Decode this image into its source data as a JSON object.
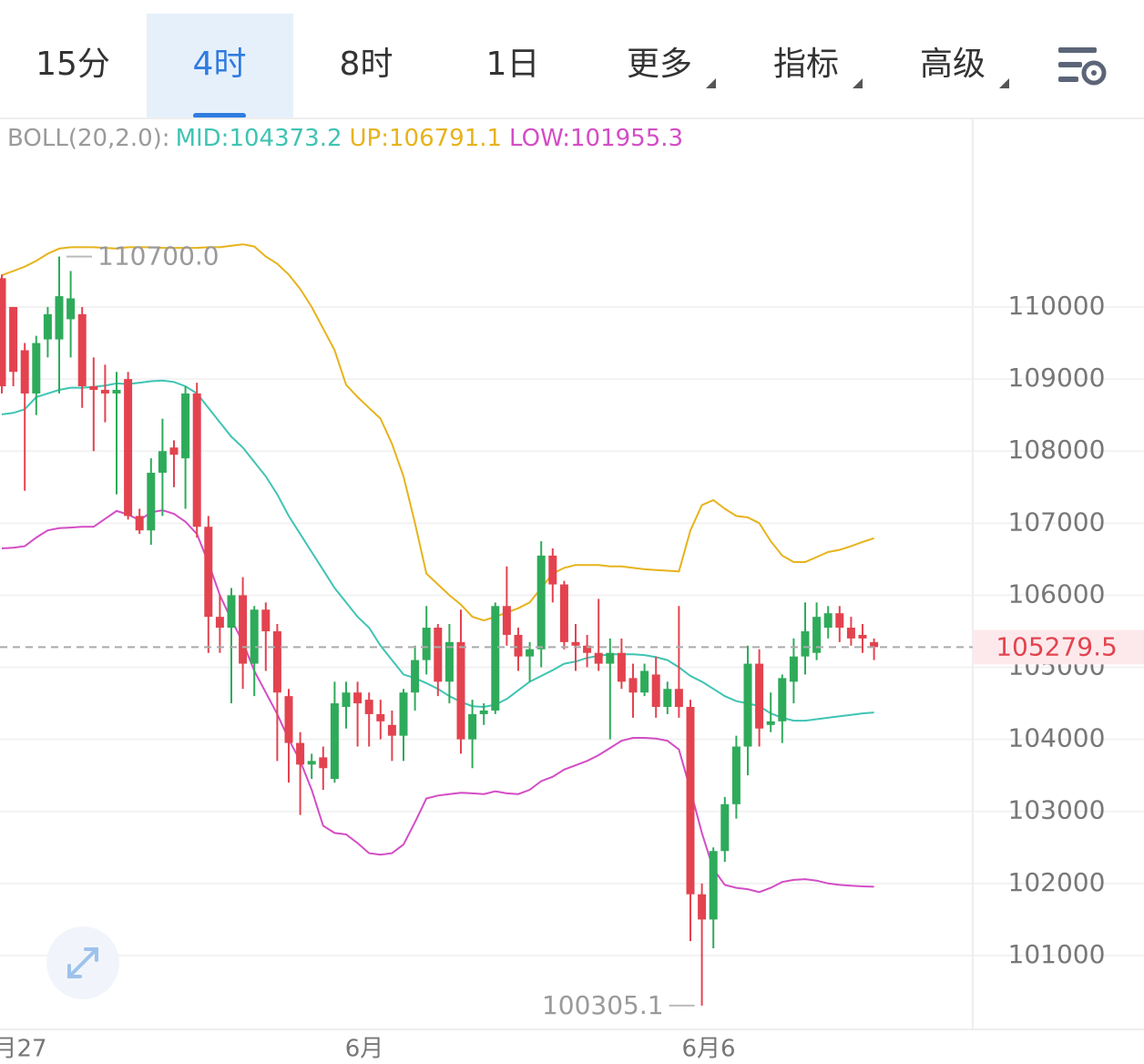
{
  "tabs": [
    {
      "label": "15分"
    },
    {
      "label": "4时"
    },
    {
      "label": "8时"
    },
    {
      "label": "1日"
    },
    {
      "label": "更多",
      "dropdown": true
    },
    {
      "label": "指标",
      "dropdown": true
    },
    {
      "label": "高级",
      "dropdown": true
    }
  ],
  "selected_tab": 1,
  "chart_data": {
    "type": "candlestick",
    "indicator": "BOLL(20,2.0):",
    "categories": [
      "月27",
      null,
      null,
      null,
      null,
      null,
      null,
      null,
      null,
      null,
      null,
      null,
      null,
      null,
      null,
      null,
      null,
      null,
      null,
      null,
      null,
      null,
      null,
      null,
      null,
      null,
      null,
      null,
      null,
      null,
      "6月",
      null,
      null,
      null,
      null,
      null,
      null,
      null,
      null,
      null,
      null,
      null,
      null,
      null,
      null,
      null,
      null,
      null,
      null,
      null,
      null,
      null,
      null,
      null,
      null,
      null,
      null,
      null,
      null,
      null,
      "6月6",
      null,
      null,
      null,
      null,
      null,
      null,
      null,
      null,
      null,
      null,
      null,
      null,
      null,
      null,
      null,
      null
    ],
    "open": [
      110400,
      110000,
      109400,
      108800,
      109550,
      109550,
      109830,
      109900,
      108900,
      108850,
      108800,
      109000,
      107100,
      106900,
      107700,
      108050,
      107900,
      108800,
      106950,
      105700,
      105550,
      106000,
      105050,
      105800,
      105500,
      104600,
      103950,
      103650,
      103750,
      103450,
      104450,
      104650,
      104550,
      104350,
      104200,
      104050,
      104650,
      105100,
      105550,
      104800,
      105350,
      104000,
      104350,
      104400,
      105850,
      105450,
      105150,
      105250,
      106550,
      106150,
      105350,
      105300,
      105200,
      105050,
      105200,
      104850,
      104650,
      104900,
      104450,
      104700,
      104450,
      101850,
      101500,
      102450,
      103100,
      103900,
      105050,
      104200,
      104250,
      104800,
      105150,
      105200,
      105550,
      105750,
      105550,
      105450,
      105350
    ],
    "high": [
      110450,
      110000,
      109500,
      109600,
      110000,
      110700,
      110500,
      110000,
      109300,
      109200,
      109100,
      109100,
      107200,
      107900,
      108450,
      108150,
      108900,
      108950,
      107100,
      106000,
      106100,
      106250,
      105850,
      105900,
      105600,
      104700,
      104100,
      103800,
      103900,
      104800,
      104800,
      104800,
      104650,
      104550,
      104400,
      104700,
      105300,
      105850,
      105600,
      105600,
      105800,
      104550,
      104500,
      105900,
      106400,
      105550,
      105350,
      106750,
      106650,
      106200,
      105600,
      105450,
      105950,
      105400,
      105400,
      105050,
      105050,
      105150,
      104800,
      105850,
      104550,
      102000,
      102500,
      103200,
      104050,
      105300,
      105250,
      104650,
      104900,
      105400,
      105900,
      105900,
      105850,
      105850,
      105700,
      105600,
      105400
    ],
    "low": [
      108800,
      108900,
      107450,
      108500,
      109300,
      108800,
      109300,
      108600,
      108000,
      108400,
      107400,
      107050,
      106850,
      106700,
      107100,
      107500,
      107200,
      106800,
      105200,
      105200,
      104500,
      104700,
      104600,
      104950,
      103700,
      103400,
      102950,
      103450,
      103300,
      103400,
      104150,
      103900,
      103900,
      104000,
      103700,
      103700,
      104400,
      104900,
      104600,
      104500,
      103800,
      103600,
      104200,
      104350,
      105300,
      104950,
      104800,
      105000,
      105900,
      105250,
      104950,
      105000,
      104950,
      104000,
      104700,
      104300,
      104600,
      104300,
      104350,
      104300,
      101200,
      100305.1,
      101100,
      102300,
      102900,
      103500,
      103900,
      104100,
      103950,
      104500,
      104900,
      105100,
      105400,
      105350,
      105300,
      105200,
      105100
    ],
    "close": [
      108900,
      109100,
      108800,
      109500,
      109900,
      110150,
      110120,
      108900,
      108850,
      108800,
      108850,
      107100,
      106900,
      107700,
      108000,
      107950,
      108800,
      106950,
      105700,
      105550,
      106000,
      105050,
      105800,
      105500,
      104650,
      103950,
      103650,
      103700,
      103600,
      104500,
      104650,
      104500,
      104350,
      104250,
      104050,
      104650,
      105100,
      105550,
      104800,
      105350,
      104000,
      104350,
      104400,
      105850,
      105450,
      105150,
      105250,
      106550,
      106150,
      105350,
      105300,
      105200,
      105050,
      105200,
      104800,
      104650,
      104950,
      104450,
      104700,
      104450,
      101850,
      101500,
      102450,
      103100,
      103900,
      105050,
      104150,
      104250,
      104850,
      105150,
      105500,
      105700,
      105750,
      105550,
      105400,
      105400,
      105279.5
    ],
    "up_color": "#2eab5a",
    "down_color": "#e3434f",
    "series": [
      {
        "name": "MID:104373.2",
        "color": "#3fc4b3",
        "values": [
          108510,
          108530,
          108580,
          108750,
          108800,
          108850,
          108880,
          108880,
          108890,
          108910,
          108940,
          108930,
          108950,
          108970,
          108980,
          108960,
          108900,
          108800,
          108600,
          108400,
          108200,
          108050,
          107850,
          107650,
          107400,
          107100,
          106850,
          106600,
          106350,
          106100,
          105900,
          105700,
          105550,
          105300,
          105100,
          104900,
          104850,
          104780,
          104700,
          104600,
          104520,
          104460,
          104450,
          104480,
          104560,
          104680,
          104800,
          104880,
          104960,
          105050,
          105080,
          105130,
          105160,
          105180,
          105180,
          105180,
          105170,
          105140,
          105100,
          105000,
          104880,
          104800,
          104700,
          104600,
          104530,
          104500,
          104460,
          104360,
          104300,
          104260,
          104260,
          104280,
          104300,
          104320,
          104340,
          104360,
          104373.2
        ]
      },
      {
        "name": "UP:106791.1",
        "color": "#e7b31c",
        "values": [
          110440,
          110500,
          110560,
          110640,
          110740,
          110810,
          110830,
          110830,
          110830,
          110820,
          110810,
          110830,
          110830,
          110830,
          110820,
          110820,
          110820,
          110820,
          110830,
          110830,
          110850,
          110870,
          110840,
          110700,
          110600,
          110450,
          110250,
          110000,
          109700,
          109400,
          108920,
          108750,
          108600,
          108450,
          108100,
          107650,
          107000,
          106300,
          106150,
          106000,
          105870,
          105700,
          105650,
          105700,
          105760,
          105820,
          105900,
          106100,
          106300,
          106380,
          106420,
          106420,
          106420,
          106400,
          106400,
          106380,
          106360,
          106350,
          106340,
          106330,
          106900,
          107250,
          107320,
          107200,
          107100,
          107080,
          107000,
          106750,
          106550,
          106460,
          106460,
          106530,
          106600,
          106630,
          106680,
          106740,
          106791.1
        ]
      },
      {
        "name": "LOW:101955.3",
        "color": "#d34dc5",
        "values": [
          106650,
          106660,
          106680,
          106800,
          106900,
          106930,
          106940,
          106950,
          106950,
          107060,
          107170,
          107120,
          107040,
          107150,
          107180,
          107130,
          107020,
          106850,
          106450,
          106000,
          105660,
          105350,
          104950,
          104650,
          104350,
          104000,
          103700,
          103300,
          102800,
          102700,
          102680,
          102560,
          102420,
          102400,
          102420,
          102540,
          102850,
          103180,
          103220,
          103240,
          103260,
          103250,
          103240,
          103280,
          103250,
          103240,
          103300,
          103420,
          103480,
          103580,
          103640,
          103700,
          103780,
          103880,
          103980,
          104020,
          104020,
          104010,
          103980,
          103860,
          103300,
          102700,
          102200,
          101980,
          101940,
          101920,
          101880,
          101940,
          102020,
          102050,
          102060,
          102040,
          102000,
          101980,
          101970,
          101960,
          101955.3
        ]
      }
    ],
    "ylim": [
      99975,
      112617
    ],
    "yticks": [
      101000,
      102000,
      103000,
      104000,
      105000,
      106000,
      107000,
      108000,
      109000,
      110000
    ],
    "grid": true,
    "annotations": [
      {
        "value": 110700,
        "label": "110700.0"
      },
      {
        "value": 100305.1,
        "label": "100305.1"
      }
    ],
    "last_price": {
      "value": 105279.5,
      "label": "105279.5"
    }
  }
}
